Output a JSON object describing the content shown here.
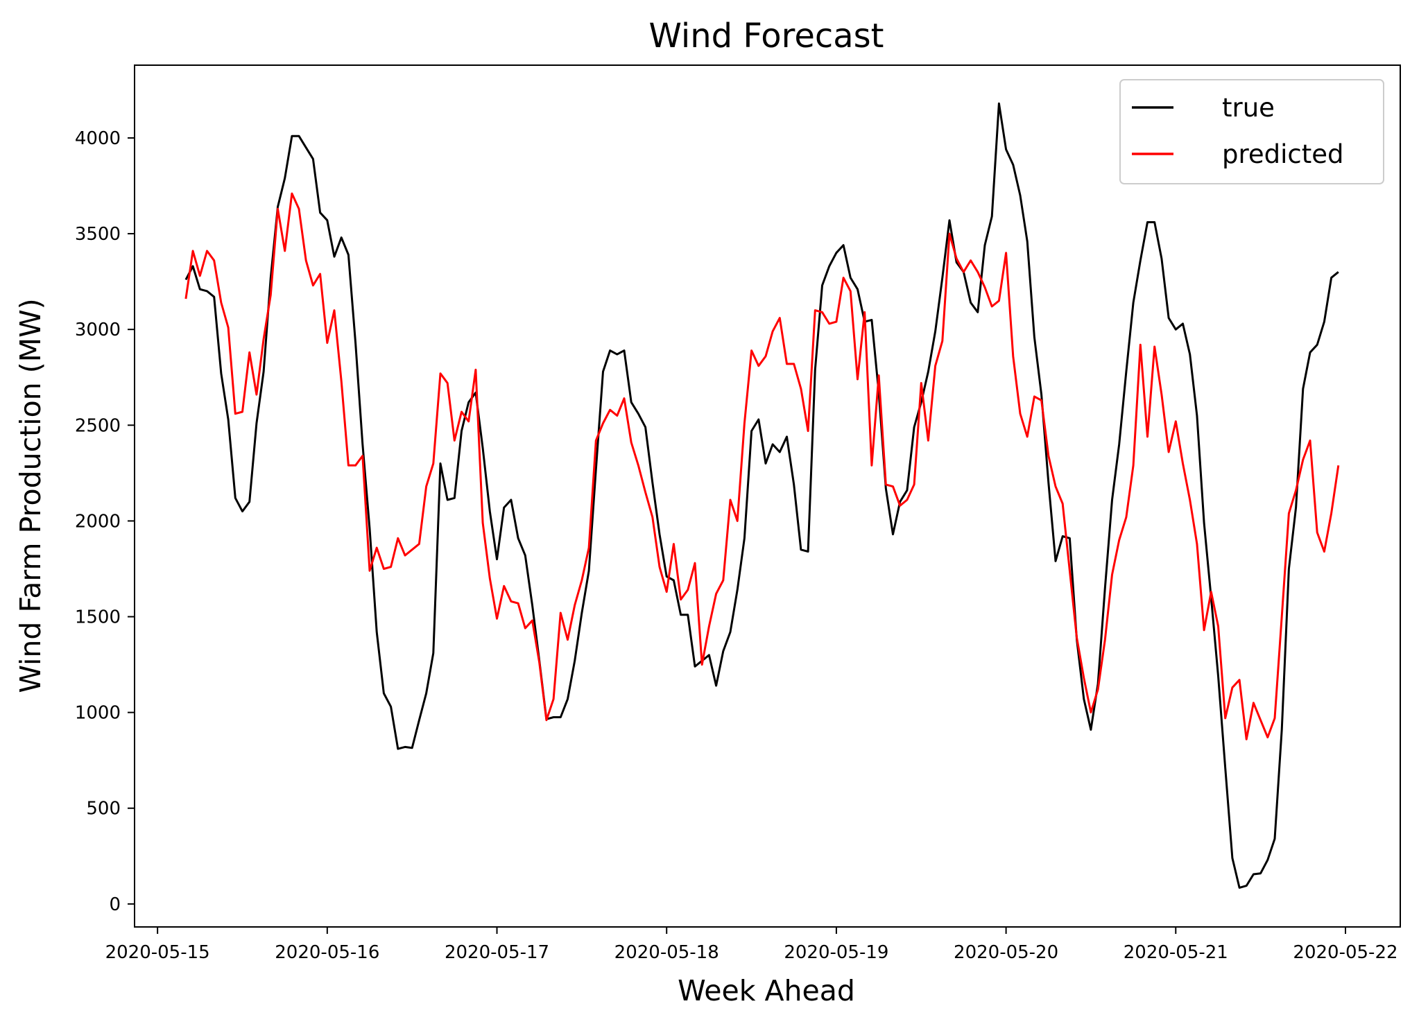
{
  "chart_data": {
    "type": "line",
    "title": "Wind Forecast",
    "xlabel": "Week Ahead",
    "ylabel": "Wind Farm Production (MW)",
    "xlim": [
      "2020-05-14T20:45",
      "2020-05-22T07:45"
    ],
    "ylim": [
      -120,
      4380
    ],
    "x_ticks": [
      "2020-05-15",
      "2020-05-16",
      "2020-05-17",
      "2020-05-18",
      "2020-05-19",
      "2020-05-20",
      "2020-05-21",
      "2020-05-22"
    ],
    "y_ticks": [
      0,
      500,
      1000,
      1500,
      2000,
      2500,
      3000,
      3500,
      4000
    ],
    "x_start": "2020-05-15T04:00",
    "x_step_hours": 1,
    "legend_position": "upper right",
    "grid": false,
    "series": [
      {
        "name": "true",
        "color": "#000000",
        "values": [
          3260,
          3330,
          3210,
          3200,
          3170,
          2770,
          2530,
          2120,
          2050,
          2100,
          2510,
          2780,
          3270,
          3640,
          3790,
          4010,
          4010,
          3950,
          3890,
          3610,
          3570,
          3380,
          3480,
          3390,
          2930,
          2400,
          1960,
          1420,
          1100,
          1030,
          810,
          820,
          815,
          960,
          1100,
          1310,
          2300,
          2110,
          2120,
          2470,
          2620,
          2670,
          2380,
          2050,
          1800,
          2070,
          2110,
          1910,
          1820,
          1560,
          1270,
          965,
          975,
          975,
          1070,
          1270,
          1520,
          1740,
          2270,
          2780,
          2890,
          2870,
          2890,
          2620,
          2560,
          2490,
          2200,
          1930,
          1710,
          1690,
          1510,
          1510,
          1240,
          1270,
          1300,
          1140,
          1320,
          1420,
          1640,
          1910,
          2470,
          2530,
          2300,
          2400,
          2360,
          2440,
          2190,
          1850,
          1840,
          2790,
          3230,
          3330,
          3400,
          3440,
          3270,
          3210,
          3040,
          3050,
          2670,
          2170,
          1930,
          2100,
          2160,
          2490,
          2620,
          2780,
          2990,
          3270,
          3570,
          3350,
          3300,
          3140,
          3090,
          3440,
          3590,
          4180,
          3940,
          3860,
          3700,
          3460,
          2960,
          2660,
          2200,
          1790,
          1920,
          1910,
          1380,
          1070,
          910,
          1150,
          1650,
          2110,
          2400,
          2780,
          3140,
          3360,
          3560,
          3560,
          3370,
          3060,
          3000,
          3030,
          2870,
          2550,
          1990,
          1600,
          1190,
          710,
          240,
          85,
          95,
          155,
          160,
          230,
          340,
          910,
          1750,
          2070,
          2690,
          2880,
          2920,
          3040,
          3270,
          3300
        ]
      },
      {
        "name": "predicted",
        "color": "#ff0000",
        "values": [
          3160,
          3410,
          3280,
          3410,
          3360,
          3140,
          3010,
          2560,
          2570,
          2880,
          2660,
          2950,
          3180,
          3630,
          3410,
          3710,
          3630,
          3360,
          3230,
          3290,
          2930,
          3100,
          2730,
          2290,
          2290,
          2340,
          1740,
          1860,
          1750,
          1760,
          1910,
          1820,
          1850,
          1880,
          2180,
          2300,
          2770,
          2720,
          2420,
          2570,
          2520,
          2790,
          1990,
          1700,
          1490,
          1660,
          1580,
          1570,
          1440,
          1480,
          1260,
          960,
          1070,
          1520,
          1380,
          1560,
          1690,
          1860,
          2420,
          2510,
          2580,
          2550,
          2640,
          2410,
          2290,
          2150,
          2020,
          1760,
          1630,
          1880,
          1590,
          1640,
          1780,
          1250,
          1450,
          1620,
          1690,
          2110,
          2000,
          2510,
          2890,
          2810,
          2860,
          2990,
          3060,
          2820,
          2820,
          2690,
          2470,
          3100,
          3090,
          3030,
          3040,
          3270,
          3200,
          2740,
          3090,
          2290,
          2760,
          2190,
          2180,
          2080,
          2110,
          2190,
          2720,
          2420,
          2810,
          2940,
          3500,
          3370,
          3300,
          3360,
          3300,
          3220,
          3120,
          3150,
          3400,
          2860,
          2560,
          2440,
          2650,
          2630,
          2340,
          2180,
          2090,
          1740,
          1390,
          1180,
          1000,
          1120,
          1380,
          1720,
          1900,
          2020,
          2290,
          2920,
          2440,
          2910,
          2660,
          2360,
          2520,
          2300,
          2110,
          1880,
          1430,
          1630,
          1450,
          970,
          1130,
          1170,
          860,
          1050,
          960,
          870,
          970,
          1500,
          2040,
          2160,
          2320,
          2420,
          1940,
          1840,
          2040,
          2290
        ]
      }
    ]
  }
}
